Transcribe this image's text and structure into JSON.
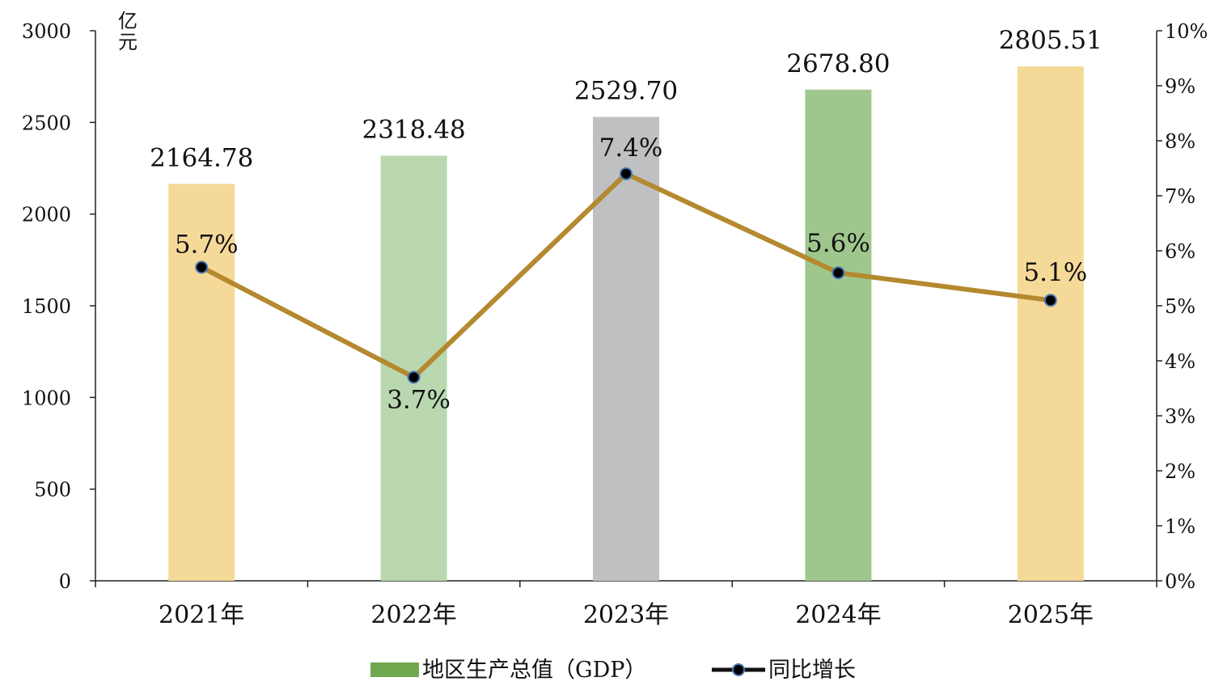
{
  "chart_data": {
    "type": "bar",
    "title": "",
    "categories": [
      "2021年",
      "2022年",
      "2023年",
      "2024年",
      "2025年"
    ],
    "series": [
      {
        "name": "地区生产总值（GDP）",
        "type": "bar",
        "axis": "left",
        "values": [
          2164.78,
          2318.48,
          2529.7,
          2678.8,
          2805.51
        ],
        "value_labels": [
          "2164.78",
          "2318.48",
          "2529.70",
          "2678.80",
          "2805.51"
        ],
        "bar_colors": [
          "#f5d999",
          "#b9d8b0",
          "#bfc0c2",
          "#9fc78d",
          "#f5d999"
        ],
        "legend_color": "#70a84f"
      },
      {
        "name": "同比增长",
        "type": "line",
        "axis": "right",
        "values": [
          5.7,
          3.7,
          7.4,
          5.6,
          5.1
        ],
        "value_labels": [
          "5.7%",
          "3.7%",
          "7.4%",
          "5.6%",
          "5.1%"
        ],
        "line_color": "#b4892f",
        "marker_color": "#000000",
        "marker_edge_color": "#4a78b5"
      }
    ],
    "ylabel_left": "亿元",
    "ylim_left": [
      0,
      3000
    ],
    "yticks_left": [
      "0",
      "500",
      "1000",
      "1500",
      "2000",
      "2500",
      "3000"
    ],
    "ylim_right": [
      0,
      10
    ],
    "yticks_right": [
      "0%",
      "1%",
      "2%",
      "3%",
      "4%",
      "5%",
      "6%",
      "7%",
      "8%",
      "9%",
      "10%"
    ],
    "grid": false,
    "legend_position": "bottom-center"
  }
}
